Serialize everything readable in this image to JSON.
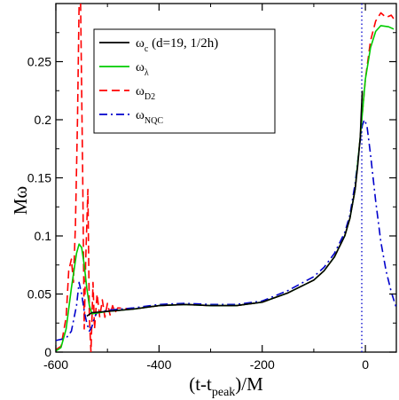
{
  "chart_data": {
    "type": "line",
    "xlabel": "(t-t",
    "xlabel_sub": "peak",
    "xlabel_tail": ")/M",
    "ylabel": "Mω",
    "xlim": [
      -600,
      60
    ],
    "ylim": [
      0,
      0.3
    ],
    "x_ticks": [
      -600,
      -400,
      -200,
      0
    ],
    "x_tick_labels": [
      "-600",
      "-400",
      "-200",
      "0"
    ],
    "y_ticks": [
      0,
      0.05,
      0.1,
      0.15,
      0.2,
      0.25
    ],
    "y_tick_labels": [
      "0",
      "0.05",
      "0.1",
      "0.15",
      "0.2",
      "0.25"
    ],
    "grid": false,
    "legend_position": "top-center",
    "vertical_line": {
      "x": -7,
      "style": "dotted",
      "color": "#0000cc"
    },
    "series": [
      {
        "name": "ω",
        "name_sub": "c",
        "name_tail": " (d=19, 1/2h)",
        "color": "#000000",
        "dash": "solid",
        "points": [
          [
            -540,
            0.031
          ],
          [
            -530,
            0.034
          ],
          [
            -500,
            0.035
          ],
          [
            -450,
            0.037
          ],
          [
            -400,
            0.04
          ],
          [
            -350,
            0.041
          ],
          [
            -300,
            0.04
          ],
          [
            -250,
            0.04
          ],
          [
            -200,
            0.043
          ],
          [
            -150,
            0.051
          ],
          [
            -100,
            0.062
          ],
          [
            -80,
            0.07
          ],
          [
            -60,
            0.082
          ],
          [
            -40,
            0.1
          ],
          [
            -30,
            0.115
          ],
          [
            -20,
            0.14
          ],
          [
            -15,
            0.16
          ],
          [
            -10,
            0.185
          ],
          [
            -8,
            0.205
          ],
          [
            -6,
            0.225
          ]
        ]
      },
      {
        "name": "ω",
        "name_sub": "λ",
        "name_tail": "",
        "color": "#00cc00",
        "dash": "solid",
        "points": [
          [
            -600,
            0.001
          ],
          [
            -590,
            0.004
          ],
          [
            -580,
            0.02
          ],
          [
            -570,
            0.055
          ],
          [
            -560,
            0.085
          ],
          [
            -555,
            0.093
          ],
          [
            -550,
            0.09
          ],
          [
            -545,
            0.075
          ],
          [
            -540,
            0.055
          ],
          [
            -535,
            0.04
          ],
          [
            -530,
            0.033
          ],
          [
            -500,
            0.035
          ],
          [
            -450,
            0.037
          ],
          [
            -400,
            0.04
          ],
          [
            -350,
            0.041
          ],
          [
            -300,
            0.04
          ],
          [
            -250,
            0.04
          ],
          [
            -200,
            0.043
          ],
          [
            -150,
            0.051
          ],
          [
            -100,
            0.062
          ],
          [
            -80,
            0.07
          ],
          [
            -60,
            0.082
          ],
          [
            -40,
            0.1
          ],
          [
            -30,
            0.115
          ],
          [
            -20,
            0.14
          ],
          [
            -10,
            0.185
          ],
          [
            0,
            0.235
          ],
          [
            10,
            0.262
          ],
          [
            20,
            0.276
          ],
          [
            30,
            0.281
          ],
          [
            45,
            0.28
          ],
          [
            55,
            0.278
          ]
        ]
      },
      {
        "name": "ω",
        "name_sub": "D2",
        "name_tail": "",
        "color": "#ff0000",
        "dash": "dashed",
        "points": [
          [
            -600,
            0.002
          ],
          [
            -590,
            0.005
          ],
          [
            -580,
            0.03
          ],
          [
            -575,
            0.07
          ],
          [
            -570,
            0.08
          ],
          [
            -566,
            0.06
          ],
          [
            -562,
            0.11
          ],
          [
            -558,
            0.2
          ],
          [
            -555,
            0.3
          ],
          [
            -552,
            0.3
          ],
          [
            -548,
            0.15
          ],
          [
            -545,
            0.02
          ],
          [
            -542,
            0.08
          ],
          [
            -538,
            0.14
          ],
          [
            -535,
            0.03
          ],
          [
            -532,
            0.0
          ],
          [
            -528,
            0.06
          ],
          [
            -525,
            0.02
          ],
          [
            -520,
            0.05
          ],
          [
            -515,
            0.03
          ],
          [
            -510,
            0.045
          ],
          [
            -505,
            0.03
          ],
          [
            -500,
            0.042
          ],
          [
            -495,
            0.032
          ],
          [
            -490,
            0.04
          ],
          [
            -485,
            0.034
          ],
          [
            -480,
            0.038
          ],
          [
            -450,
            0.037
          ],
          [
            -400,
            0.04
          ],
          [
            -350,
            0.041
          ],
          [
            -300,
            0.04
          ],
          [
            -250,
            0.04
          ],
          [
            -200,
            0.043
          ],
          [
            -150,
            0.051
          ],
          [
            -100,
            0.062
          ],
          [
            -80,
            0.07
          ],
          [
            -60,
            0.082
          ],
          [
            -40,
            0.1
          ],
          [
            -30,
            0.115
          ],
          [
            -20,
            0.14
          ],
          [
            -10,
            0.185
          ],
          [
            0,
            0.235
          ],
          [
            10,
            0.268
          ],
          [
            20,
            0.285
          ],
          [
            30,
            0.292
          ],
          [
            40,
            0.288
          ],
          [
            50,
            0.29
          ],
          [
            58,
            0.285
          ]
        ]
      },
      {
        "name": "ω",
        "name_sub": "NQC",
        "name_tail": "",
        "color": "#0000cc",
        "dash": "dashdot",
        "points": [
          [
            -600,
            0.01
          ],
          [
            -580,
            0.012
          ],
          [
            -570,
            0.018
          ],
          [
            -560,
            0.04
          ],
          [
            -555,
            0.06
          ],
          [
            -550,
            0.05
          ],
          [
            -545,
            0.035
          ],
          [
            -540,
            0.025
          ],
          [
            -535,
            0.018
          ],
          [
            -530,
            0.022
          ],
          [
            -525,
            0.03
          ],
          [
            -520,
            0.034
          ],
          [
            -500,
            0.036
          ],
          [
            -450,
            0.038
          ],
          [
            -400,
            0.041
          ],
          [
            -350,
            0.042
          ],
          [
            -300,
            0.041
          ],
          [
            -250,
            0.041
          ],
          [
            -200,
            0.044
          ],
          [
            -150,
            0.053
          ],
          [
            -100,
            0.065
          ],
          [
            -80,
            0.073
          ],
          [
            -60,
            0.085
          ],
          [
            -40,
            0.103
          ],
          [
            -30,
            0.118
          ],
          [
            -20,
            0.145
          ],
          [
            -12,
            0.175
          ],
          [
            -6,
            0.195
          ],
          [
            -2,
            0.2
          ],
          [
            3,
            0.195
          ],
          [
            10,
            0.17
          ],
          [
            20,
            0.13
          ],
          [
            30,
            0.095
          ],
          [
            40,
            0.07
          ],
          [
            50,
            0.052
          ],
          [
            60,
            0.038
          ]
        ]
      }
    ]
  }
}
